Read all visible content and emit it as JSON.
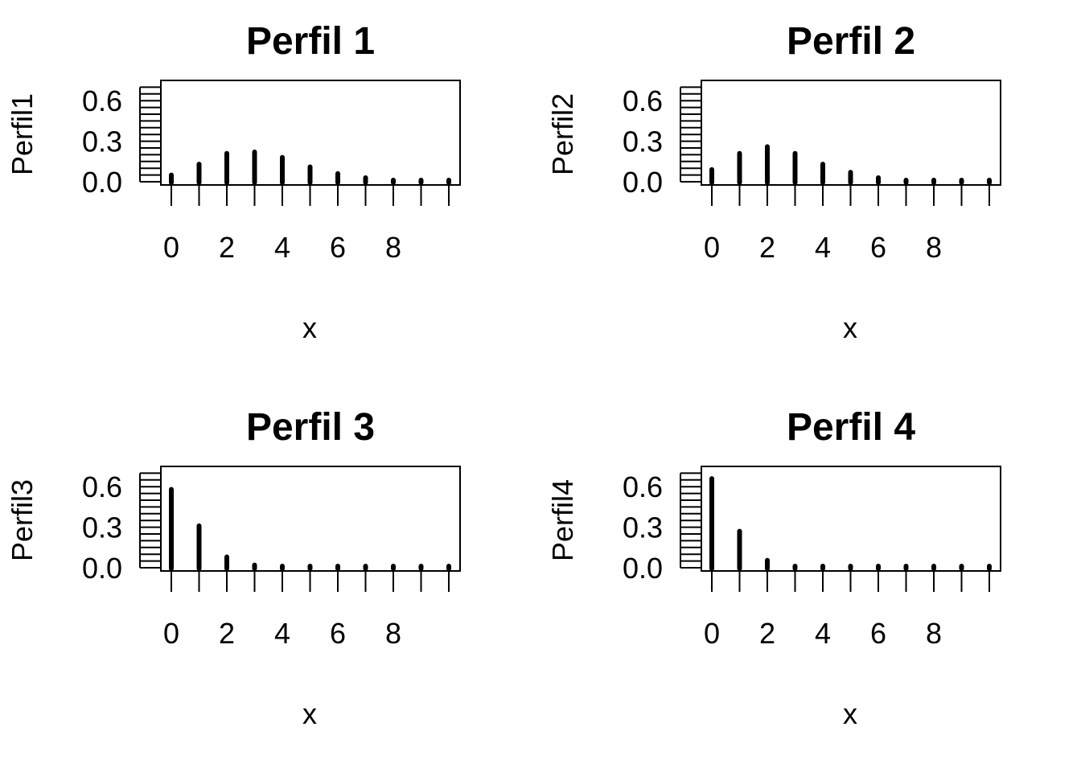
{
  "chart_data": [
    {
      "type": "bar",
      "title": "Perfil 1",
      "xlabel": "x",
      "ylabel": "Perfil1",
      "x": [
        0,
        1,
        2,
        3,
        4,
        5,
        6,
        7,
        8,
        9,
        10
      ],
      "values": [
        0.05,
        0.13,
        0.21,
        0.22,
        0.18,
        0.11,
        0.06,
        0.03,
        0.01,
        0.005,
        0.002
      ],
      "ylim": [
        0,
        0.7
      ],
      "xticks": [
        0,
        2,
        4,
        6,
        8
      ],
      "yticks": [
        "0.0",
        "0.3",
        "0.6"
      ]
    },
    {
      "type": "bar",
      "title": "Perfil 2",
      "xlabel": "x",
      "ylabel": "Perfil2",
      "x": [
        0,
        1,
        2,
        3,
        4,
        5,
        6,
        7,
        8,
        9,
        10
      ],
      "values": [
        0.09,
        0.21,
        0.26,
        0.21,
        0.13,
        0.07,
        0.03,
        0.01,
        0.005,
        0.002,
        0.001
      ],
      "ylim": [
        0,
        0.7
      ],
      "xticks": [
        0,
        2,
        4,
        6,
        8
      ],
      "yticks": [
        "0.0",
        "0.3",
        "0.6"
      ]
    },
    {
      "type": "bar",
      "title": "Perfil 3",
      "xlabel": "x",
      "ylabel": "Perfil3",
      "x": [
        0,
        1,
        2,
        3,
        4,
        5,
        6,
        7,
        8,
        9,
        10
      ],
      "values": [
        0.58,
        0.31,
        0.08,
        0.02,
        0.004,
        0.001,
        0.0,
        0.0,
        0.0,
        0.0,
        0.0
      ],
      "ylim": [
        0,
        0.7
      ],
      "xticks": [
        0,
        2,
        4,
        6,
        8
      ],
      "yticks": [
        "0.0",
        "0.3",
        "0.6"
      ]
    },
    {
      "type": "bar",
      "title": "Perfil 4",
      "xlabel": "x",
      "ylabel": "Perfil4",
      "x": [
        0,
        1,
        2,
        3,
        4,
        5,
        6,
        7,
        8,
        9,
        10
      ],
      "values": [
        0.66,
        0.27,
        0.055,
        0.008,
        0.001,
        0.0,
        0.0,
        0.0,
        0.0,
        0.0,
        0.0
      ],
      "ylim": [
        0,
        0.7
      ],
      "xticks": [
        0,
        2,
        4,
        6,
        8
      ],
      "yticks": [
        "0.0",
        "0.3",
        "0.6"
      ]
    }
  ]
}
